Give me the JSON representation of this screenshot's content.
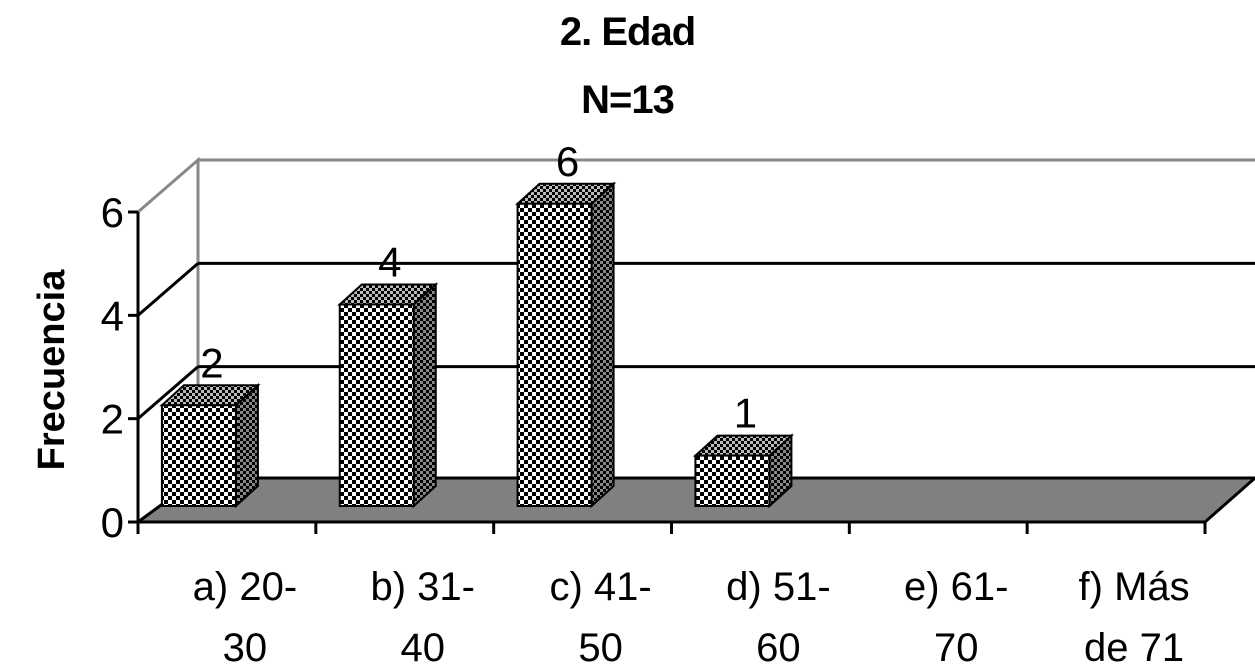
{
  "chart_data": {
    "type": "bar",
    "title": "2. Edad",
    "subtitle": "N=13",
    "xlabel": "",
    "ylabel": "Frecuencia",
    "categories": [
      [
        "a)  20-",
        "30"
      ],
      [
        "b)  31-",
        "40"
      ],
      [
        "c) 41-",
        "50"
      ],
      [
        "d)  51-",
        "60"
      ],
      [
        "e)  61-",
        "70"
      ],
      [
        "f)  Más",
        "de 71"
      ]
    ],
    "values": [
      2,
      4,
      6,
      1,
      0,
      0
    ],
    "data_labels": [
      "2",
      "4",
      "6",
      "1",
      "",
      ""
    ],
    "yticks": [
      "0",
      "2",
      "4",
      "6"
    ],
    "ylim": [
      0,
      6
    ],
    "grid": true,
    "style": "3d-column"
  }
}
